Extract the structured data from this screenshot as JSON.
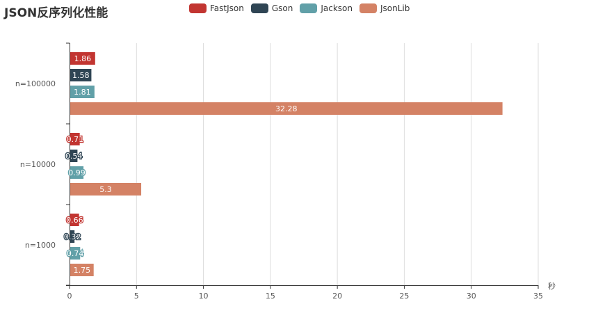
{
  "title": "JSON反序列化性能",
  "legend": [
    {
      "name": "FastJson",
      "color": "#c23531"
    },
    {
      "name": "Gson",
      "color": "#2f4554"
    },
    {
      "name": "Jackson",
      "color": "#61a0a8"
    },
    {
      "name": "JsonLib",
      "color": "#d48265"
    }
  ],
  "x_axis": {
    "unit": "秒",
    "ticks": [
      "0",
      "5",
      "10",
      "15",
      "20",
      "25",
      "30",
      "35"
    ]
  },
  "chart_data": {
    "type": "bar",
    "orientation": "horizontal",
    "title": "JSON反序列化性能",
    "xlabel": "秒",
    "ylabel": "",
    "xlim": [
      0,
      35
    ],
    "grid": true,
    "legend_position": "top",
    "categories": [
      "n=1000",
      "n=10000",
      "n=100000"
    ],
    "series": [
      {
        "name": "FastJson",
        "color": "#c23531",
        "values": [
          0.66,
          0.71,
          1.86
        ]
      },
      {
        "name": "Gson",
        "color": "#2f4554",
        "values": [
          0.32,
          0.54,
          1.58
        ]
      },
      {
        "name": "Jackson",
        "color": "#61a0a8",
        "values": [
          0.74,
          0.99,
          1.81
        ]
      },
      {
        "name": "JsonLib",
        "color": "#d48265",
        "values": [
          1.75,
          5.3,
          32.28
        ]
      }
    ]
  }
}
